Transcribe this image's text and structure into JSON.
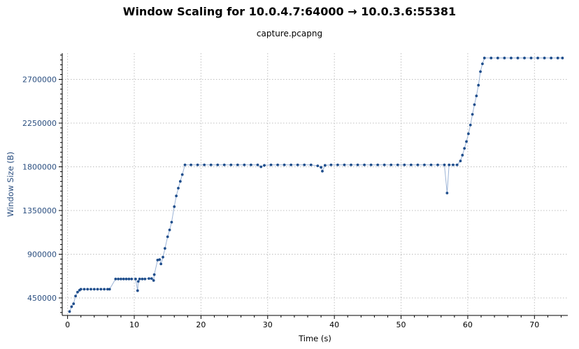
{
  "colors": {
    "series": "#1f4e8c",
    "line": "#9bb3d6",
    "grid": "#bfbfbf",
    "y_axis_text": "#2b4f80",
    "x_axis_text": "#000000"
  },
  "chart_data": {
    "type": "scatter",
    "title": "Window Scaling for 10.0.4.7:64000 → 10.0.3.6:55381",
    "subtitle": "capture.pcapng",
    "xlabel": "Time (s)",
    "ylabel": "Window Size (B)",
    "xlim": [
      -0.8,
      75.0
    ],
    "ylim": [
      270000,
      2970000
    ],
    "x_ticks": [
      0,
      10,
      20,
      30,
      40,
      50,
      60,
      70
    ],
    "y_ticks": [
      450000,
      900000,
      1350000,
      1800000,
      2250000,
      2700000
    ],
    "grid": true,
    "connected_line": true,
    "series": [
      {
        "points": [
          [
            0.3,
            310000
          ],
          [
            0.6,
            360000
          ],
          [
            0.9,
            390000
          ],
          [
            1.2,
            470000
          ],
          [
            1.5,
            510000
          ],
          [
            1.8,
            530000
          ],
          [
            2.0,
            540000
          ],
          [
            2.5,
            540000
          ],
          [
            3.0,
            540000
          ],
          [
            3.5,
            540000
          ],
          [
            4.0,
            540000
          ],
          [
            4.5,
            540000
          ],
          [
            5.0,
            540000
          ],
          [
            5.5,
            540000
          ],
          [
            6.0,
            540000
          ],
          [
            6.3,
            540000
          ],
          [
            7.2,
            645000
          ],
          [
            7.6,
            645000
          ],
          [
            8.0,
            645000
          ],
          [
            8.4,
            645000
          ],
          [
            8.8,
            645000
          ],
          [
            9.2,
            645000
          ],
          [
            9.6,
            645000
          ],
          [
            10.2,
            645000
          ],
          [
            10.5,
            525000
          ],
          [
            10.6,
            620000
          ],
          [
            10.8,
            645000
          ],
          [
            11.2,
            645000
          ],
          [
            11.6,
            645000
          ],
          [
            12.2,
            650000
          ],
          [
            12.6,
            650000
          ],
          [
            12.9,
            630000
          ],
          [
            13.0,
            690000
          ],
          [
            13.5,
            840000
          ],
          [
            13.8,
            845000
          ],
          [
            14.0,
            800000
          ],
          [
            14.3,
            870000
          ],
          [
            14.6,
            960000
          ],
          [
            15.0,
            1080000
          ],
          [
            15.3,
            1150000
          ],
          [
            15.6,
            1230000
          ],
          [
            16.0,
            1390000
          ],
          [
            16.3,
            1500000
          ],
          [
            16.6,
            1580000
          ],
          [
            16.9,
            1650000
          ],
          [
            17.2,
            1720000
          ],
          [
            17.6,
            1820000
          ],
          [
            18.5,
            1820000
          ],
          [
            19.5,
            1820000
          ],
          [
            20.5,
            1820000
          ],
          [
            21.5,
            1820000
          ],
          [
            22.5,
            1820000
          ],
          [
            23.5,
            1820000
          ],
          [
            24.5,
            1820000
          ],
          [
            25.5,
            1820000
          ],
          [
            26.5,
            1820000
          ],
          [
            27.5,
            1820000
          ],
          [
            28.5,
            1820000
          ],
          [
            29.0,
            1800000
          ],
          [
            29.5,
            1815000
          ],
          [
            30.5,
            1820000
          ],
          [
            31.5,
            1820000
          ],
          [
            32.5,
            1820000
          ],
          [
            33.5,
            1820000
          ],
          [
            34.5,
            1820000
          ],
          [
            35.5,
            1820000
          ],
          [
            36.5,
            1820000
          ],
          [
            37.5,
            1810000
          ],
          [
            38.0,
            1795000
          ],
          [
            38.2,
            1755000
          ],
          [
            38.6,
            1815000
          ],
          [
            39.5,
            1820000
          ],
          [
            40.5,
            1820000
          ],
          [
            41.5,
            1820000
          ],
          [
            42.5,
            1820000
          ],
          [
            43.5,
            1820000
          ],
          [
            44.5,
            1820000
          ],
          [
            45.5,
            1820000
          ],
          [
            46.5,
            1820000
          ],
          [
            47.5,
            1820000
          ],
          [
            48.5,
            1820000
          ],
          [
            49.5,
            1820000
          ],
          [
            50.5,
            1820000
          ],
          [
            51.5,
            1820000
          ],
          [
            52.5,
            1820000
          ],
          [
            53.5,
            1820000
          ],
          [
            54.5,
            1820000
          ],
          [
            55.5,
            1820000
          ],
          [
            56.5,
            1820000
          ],
          [
            56.9,
            1530000
          ],
          [
            57.2,
            1820000
          ],
          [
            57.8,
            1820000
          ],
          [
            58.4,
            1820000
          ],
          [
            58.9,
            1860000
          ],
          [
            59.2,
            1920000
          ],
          [
            59.5,
            1990000
          ],
          [
            59.8,
            2060000
          ],
          [
            60.1,
            2140000
          ],
          [
            60.4,
            2230000
          ],
          [
            60.7,
            2340000
          ],
          [
            61.0,
            2440000
          ],
          [
            61.3,
            2530000
          ],
          [
            61.6,
            2640000
          ],
          [
            61.9,
            2780000
          ],
          [
            62.2,
            2860000
          ],
          [
            62.5,
            2920000
          ],
          [
            63.5,
            2920000
          ],
          [
            64.5,
            2920000
          ],
          [
            65.5,
            2920000
          ],
          [
            66.5,
            2920000
          ],
          [
            67.5,
            2920000
          ],
          [
            68.5,
            2920000
          ],
          [
            69.5,
            2920000
          ],
          [
            70.5,
            2920000
          ],
          [
            71.5,
            2920000
          ],
          [
            72.5,
            2920000
          ],
          [
            73.5,
            2920000
          ],
          [
            74.2,
            2920000
          ]
        ]
      }
    ]
  }
}
